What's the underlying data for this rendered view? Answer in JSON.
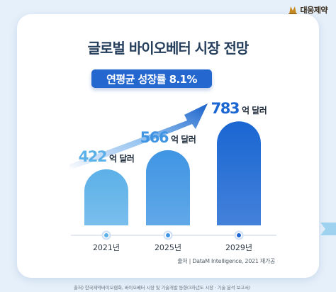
{
  "brand": {
    "name": "대웅제약",
    "accent": "#c98a1e"
  },
  "source_note": "출처 | DataM Intelligence, 2021 재가공",
  "footer_note": "출처) 한국제약바이오협회, 바이오베터 시장 및 기술개발 동향(3차년도 시장 · 기술 분석 보고서)",
  "chart_data": {
    "type": "bar",
    "title": "글로벌 바이오베터 시장 전망",
    "subtitle": "연평균 성장률 8.1%",
    "categories": [
      "2021년",
      "2025년",
      "2029년"
    ],
    "values": [
      422,
      566,
      783
    ],
    "value_unit": "억 달러",
    "value_labels": [
      "422",
      "566",
      "783"
    ],
    "colors": [
      "#5cb0e8",
      "#3f95e3",
      "#1a66d2"
    ],
    "trend_arrow": true,
    "grid": false,
    "legend": "none"
  }
}
